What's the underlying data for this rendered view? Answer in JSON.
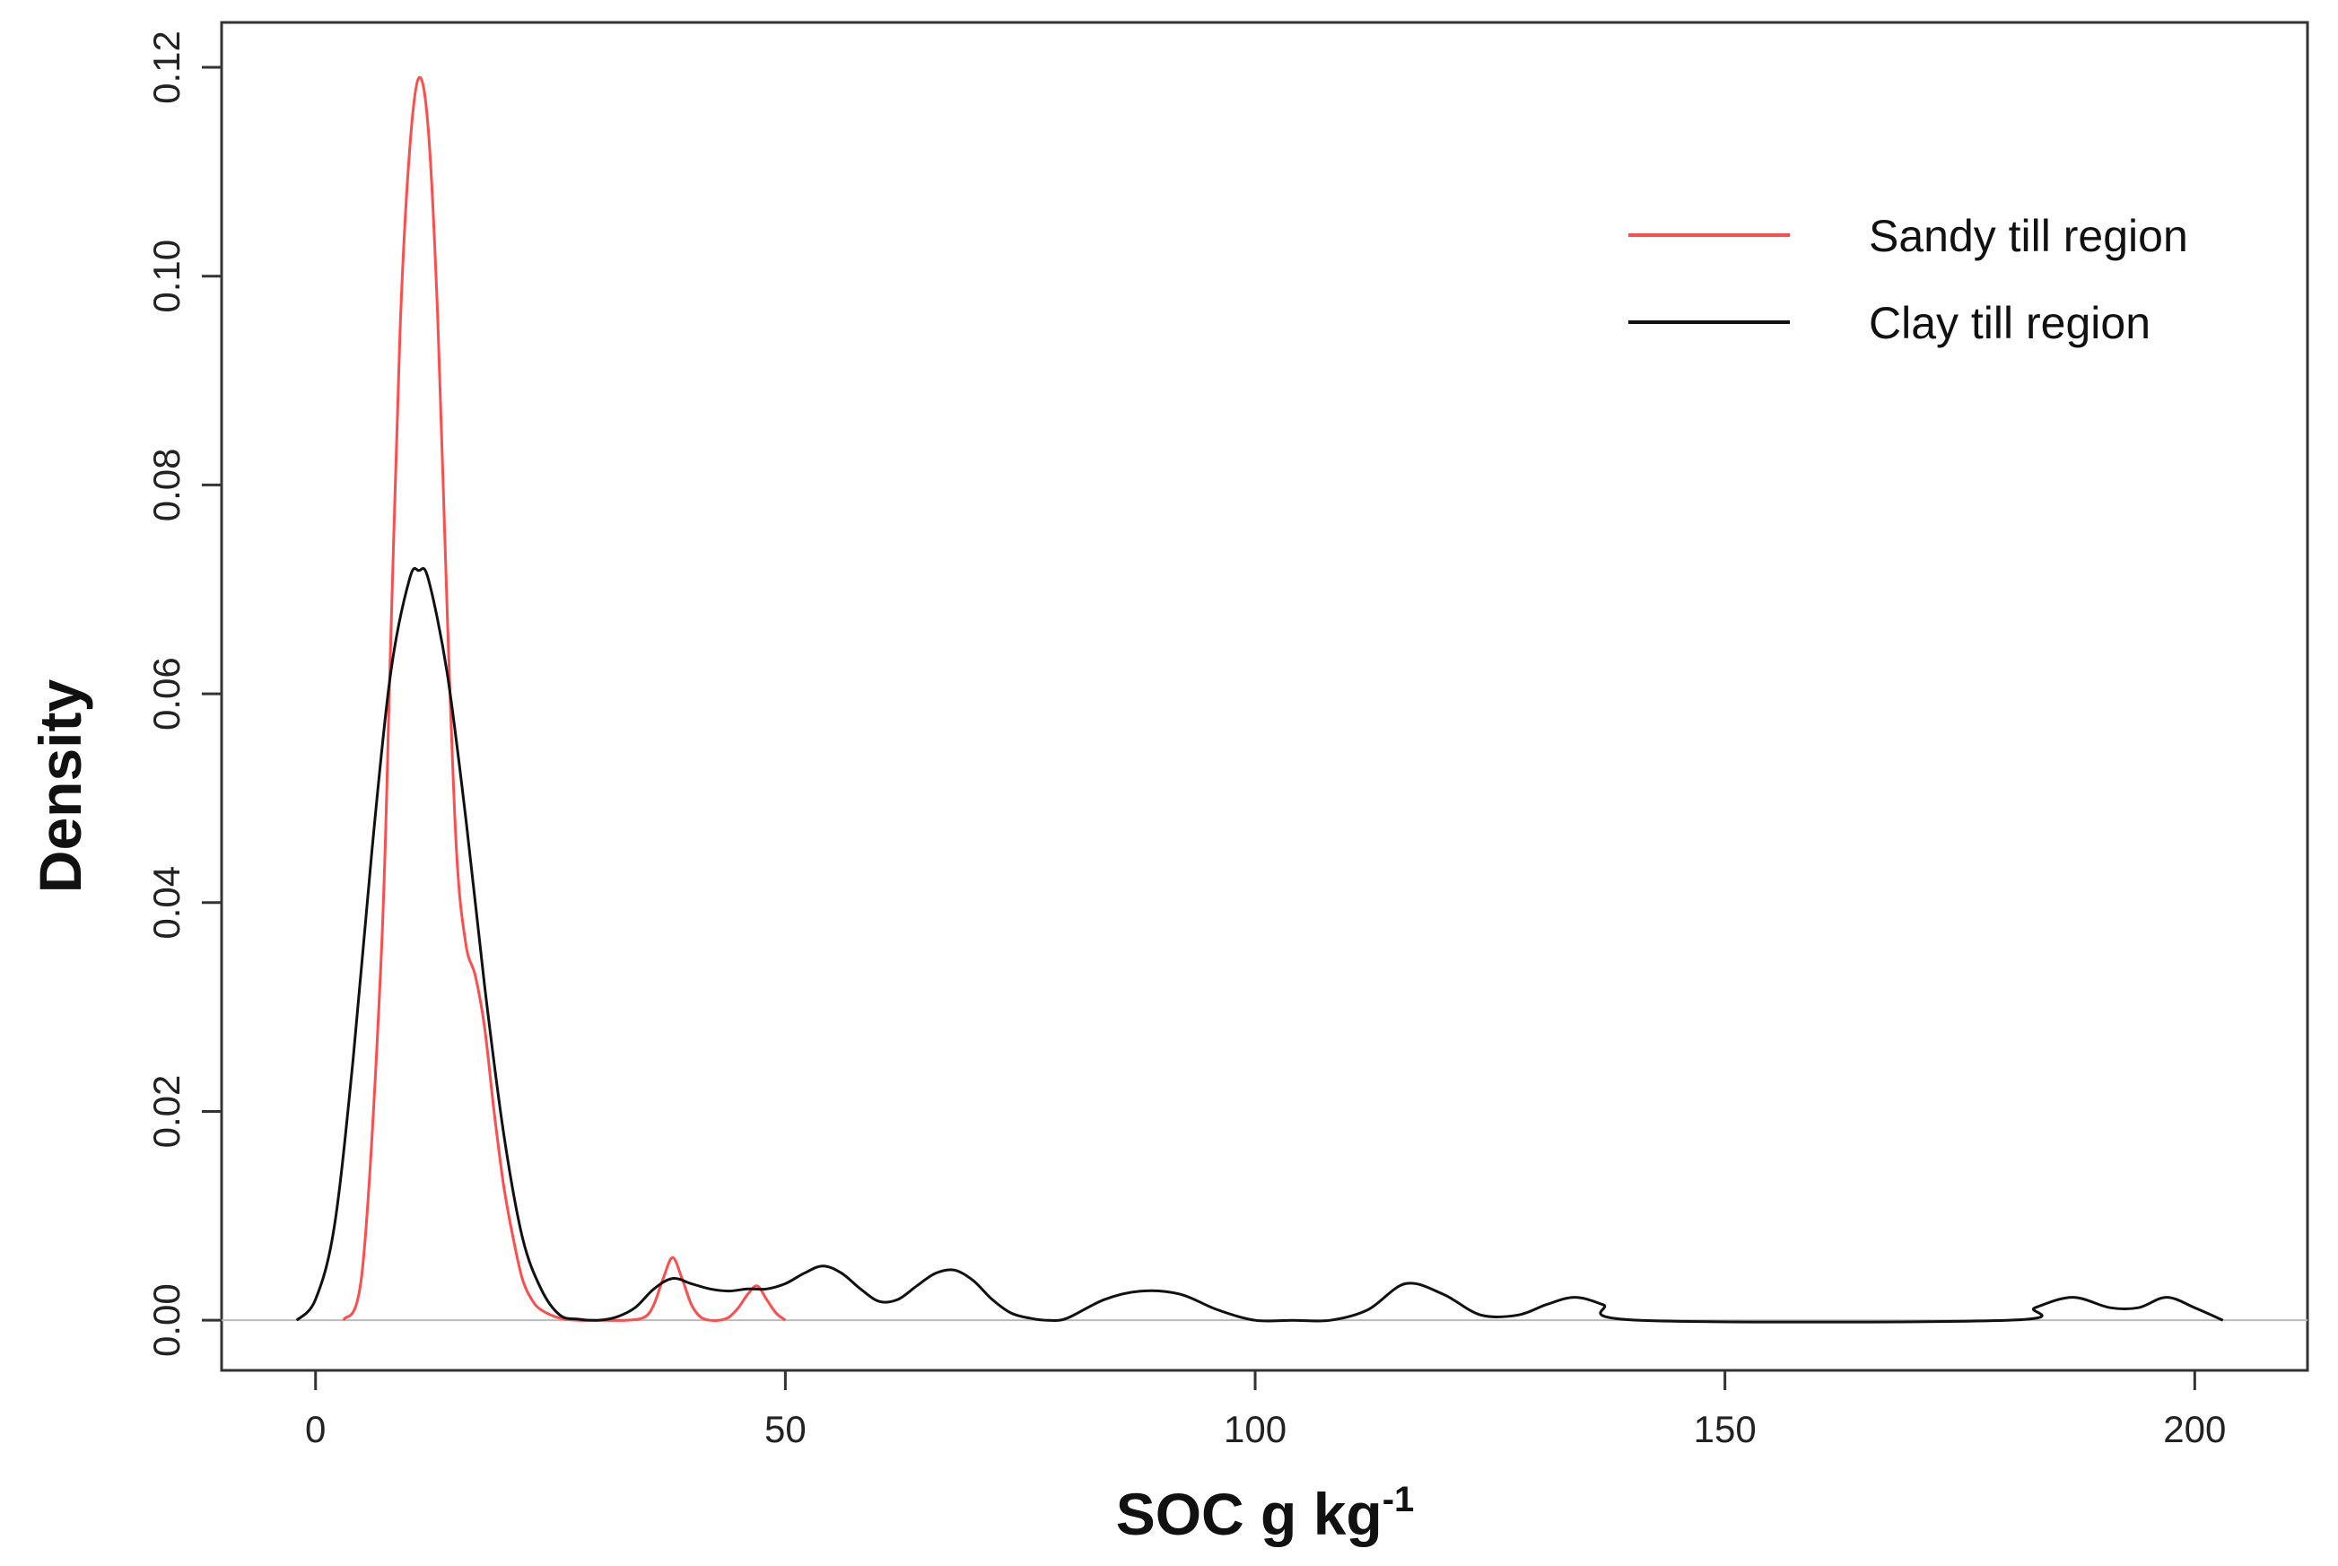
{
  "chart_data": {
    "type": "line",
    "title": "",
    "xlabel": "SOC g kg",
    "xlabel_superscript": "-1",
    "ylabel": "Density",
    "xlim": [
      -10,
      212
    ],
    "ylim": [
      -0.0048,
      0.1243
    ],
    "x_ticks": [
      0,
      50,
      100,
      150,
      200
    ],
    "x_tick_labels": [
      "0",
      "50",
      "100",
      "150",
      "200"
    ],
    "y_ticks": [
      0.0,
      0.02,
      0.04,
      0.06,
      0.08,
      0.1,
      0.12
    ],
    "y_tick_labels": [
      "0.00",
      "0.02",
      "0.04",
      "0.06",
      "0.08",
      "0.10",
      "0.12"
    ],
    "grid": false,
    "baseline": 0,
    "baseline_color": "#bbbbbb",
    "legend_position": "top-right",
    "series": [
      {
        "name": "Sandy till region",
        "color": "#ff4d4d",
        "x": [
          3,
          5,
          7,
          8,
          9,
          10,
          11,
          12,
          13,
          14,
          15,
          16,
          17,
          18,
          19,
          20,
          21,
          22,
          23,
          24,
          26,
          28,
          30,
          33,
          35,
          36,
          37,
          38,
          39,
          40,
          41,
          42,
          43,
          44,
          45,
          46,
          47,
          48,
          49,
          50
        ],
        "y": [
          0.0,
          0.005,
          0.035,
          0.065,
          0.095,
          0.112,
          0.119,
          0.114,
          0.096,
          0.068,
          0.045,
          0.036,
          0.033,
          0.028,
          0.02,
          0.013,
          0.008,
          0.004,
          0.002,
          0.001,
          0.0002,
          0.0,
          0.0,
          0.0,
          0.0003,
          0.0015,
          0.004,
          0.006,
          0.004,
          0.0015,
          0.0003,
          0.0,
          0.0,
          0.0003,
          0.0012,
          0.0025,
          0.0033,
          0.002,
          0.0007,
          0.0
        ]
      },
      {
        "name": "Clay till region",
        "color": "#111111",
        "x": [
          -2,
          0,
          2,
          4,
          6,
          8,
          10,
          11,
          12,
          14,
          16,
          18,
          20,
          22,
          24,
          26,
          28,
          30,
          32,
          34,
          36,
          38,
          40,
          42,
          44,
          46,
          48,
          50,
          52,
          54,
          56,
          58,
          60,
          62,
          64,
          66,
          68,
          70,
          72,
          74,
          76,
          78,
          80,
          84,
          88,
          92,
          96,
          100,
          104,
          108,
          112,
          116,
          120,
          124,
          128,
          131,
          134,
          137,
          141,
          180,
          183,
          187,
          191,
          194,
          197,
          200,
          203
        ],
        "y": [
          0.0,
          0.002,
          0.009,
          0.025,
          0.045,
          0.062,
          0.071,
          0.0718,
          0.071,
          0.062,
          0.048,
          0.032,
          0.018,
          0.008,
          0.003,
          0.0005,
          0.0001,
          0.0,
          0.0003,
          0.0012,
          0.003,
          0.004,
          0.0035,
          0.003,
          0.0028,
          0.003,
          0.003,
          0.0035,
          0.0045,
          0.0052,
          0.0045,
          0.003,
          0.0018,
          0.002,
          0.0033,
          0.0045,
          0.0048,
          0.0038,
          0.002,
          0.0007,
          0.0002,
          0.0,
          0.0002,
          0.002,
          0.0028,
          0.0025,
          0.001,
          0.0,
          0.0,
          0.0,
          0.001,
          0.0035,
          0.0025,
          0.0005,
          0.0005,
          0.0015,
          0.0022,
          0.0015,
          0.0,
          0.0,
          0.0012,
          0.0022,
          0.0012,
          0.0012,
          0.0022,
          0.0012,
          0.0
        ]
      }
    ]
  }
}
